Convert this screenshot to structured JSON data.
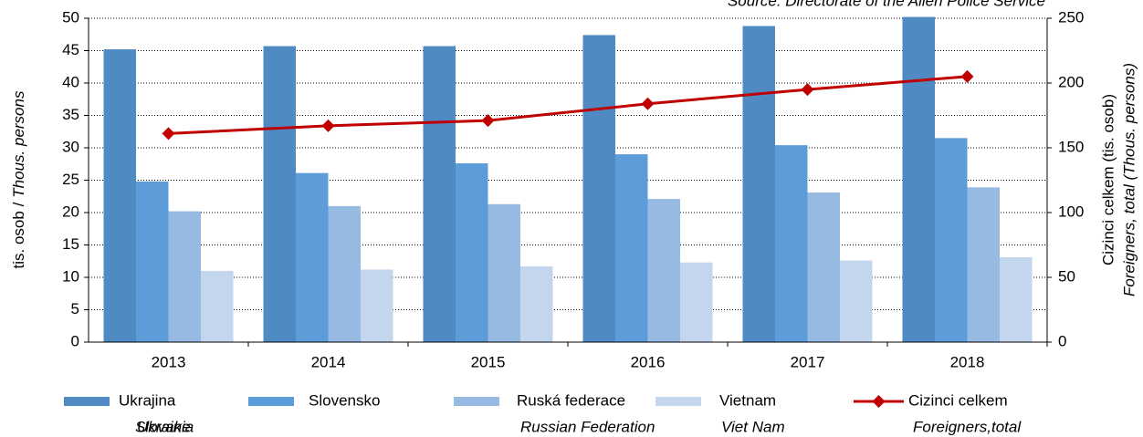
{
  "chart_data": {
    "type": "bar",
    "source": "Source: Directorate of the Alien Police Service",
    "y_label": "tis. osob /",
    "y_label_en": "Thous. persons",
    "y2_label": "Cizinci celkem (tis. osob)",
    "y2_label_en": "Foreigners, total (Thous. persons)",
    "categories": [
      "2013",
      "2014",
      "2015",
      "2016",
      "2017",
      "2018"
    ],
    "series": [
      {
        "name": "Ukrajina",
        "name_en": "Ukraine",
        "color": "#4f8ac2",
        "values": [
          45.2,
          45.7,
          45.7,
          47.4,
          48.8,
          50.2
        ]
      },
      {
        "name": "Slovensko",
        "name_en": "Slovakia",
        "color": "#5b9cd9",
        "values": [
          24.8,
          26.1,
          27.6,
          29.0,
          30.4,
          31.5
        ]
      },
      {
        "name": "Ruská federace",
        "name_en": "Russian Federation",
        "color": "#97bae2",
        "values": [
          20.2,
          21.0,
          21.3,
          22.1,
          23.1,
          23.9
        ]
      },
      {
        "name": "Vietnam",
        "name_en": "Viet Nam",
        "color": "#c3d6ee",
        "values": [
          11.0,
          11.2,
          11.7,
          12.3,
          12.6,
          13.1
        ]
      },
      {
        "name": "Cizinci celkem",
        "name_en": "Foreigners,total",
        "color": "#c00000",
        "type": "line",
        "axis": "y2",
        "values": [
          161,
          167,
          171,
          184,
          195,
          205
        ]
      }
    ],
    "ylim": [
      0,
      50
    ],
    "yticks": [
      0,
      5,
      10,
      15,
      20,
      25,
      30,
      35,
      40,
      45,
      50
    ],
    "y2lim": [
      0,
      250
    ],
    "y2ticks": [
      0,
      50,
      100,
      150,
      200,
      250
    ],
    "grid": true
  }
}
